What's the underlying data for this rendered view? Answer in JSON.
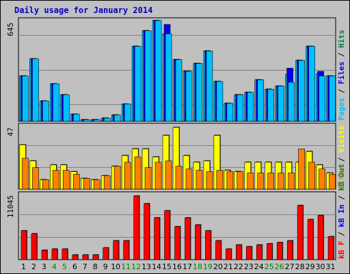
{
  "chart_data": [
    {
      "type": "bar",
      "title": "Daily usage for January 2014",
      "panel": "top",
      "ymax_label": "645",
      "ymax": 645,
      "categories": [
        "1",
        "2",
        "3",
        "4",
        "5",
        "6",
        "7",
        "8",
        "9",
        "10",
        "11",
        "12",
        "13",
        "14",
        "15",
        "16",
        "17",
        "18",
        "19",
        "20",
        "21",
        "22",
        "23",
        "24",
        "25",
        "26",
        "27",
        "28",
        "29",
        "30",
        "31"
      ],
      "weekend_days": [
        "4",
        "5",
        "11",
        "12",
        "18",
        "19",
        "25",
        "26"
      ],
      "side_label_parts": [
        "Pages",
        "Files",
        "Hits"
      ],
      "series": [
        {
          "name": "Hits",
          "values": [
            290,
            400,
            130,
            240,
            170,
            45,
            10,
            10,
            20,
            40,
            110,
            480,
            580,
            645,
            560,
            395,
            320,
            370,
            450,
            255,
            115,
            170,
            185,
            265,
            205,
            225,
            300,
            390,
            480,
            305,
            290
          ]
        },
        {
          "name": "Files",
          "values": [
            290,
            400,
            130,
            240,
            170,
            45,
            10,
            10,
            20,
            40,
            110,
            480,
            580,
            645,
            620,
            395,
            320,
            370,
            450,
            255,
            115,
            170,
            185,
            265,
            205,
            225,
            340,
            390,
            480,
            320,
            290
          ]
        },
        {
          "name": "Pages",
          "values": [
            290,
            400,
            130,
            240,
            170,
            45,
            10,
            10,
            20,
            40,
            110,
            480,
            580,
            645,
            560,
            395,
            320,
            370,
            450,
            255,
            115,
            170,
            185,
            265,
            205,
            225,
            250,
            390,
            480,
            290,
            290
          ]
        }
      ]
    },
    {
      "type": "bar",
      "panel": "middle",
      "ymax_label": "47",
      "ymax": 47,
      "categories": [
        "1",
        "2",
        "3",
        "4",
        "5",
        "6",
        "7",
        "8",
        "9",
        "10",
        "11",
        "12",
        "13",
        "14",
        "15",
        "16",
        "17",
        "18",
        "19",
        "20",
        "21",
        "22",
        "23",
        "24",
        "25",
        "26",
        "27",
        "28",
        "29",
        "30",
        "31"
      ],
      "side_label_parts": [
        "Sites",
        "Visits"
      ],
      "series": [
        {
          "name": "Visits",
          "values": [
            33,
            21,
            7,
            18,
            18,
            13,
            8,
            7,
            10,
            17,
            25,
            30,
            30,
            24,
            40,
            46,
            25,
            20,
            21,
            40,
            14,
            13,
            20,
            20,
            20,
            20,
            20,
            20,
            28,
            18,
            12
          ]
        },
        {
          "name": "Sites",
          "values": [
            23,
            16,
            7,
            14,
            14,
            11,
            8,
            7,
            10,
            17,
            20,
            24,
            16,
            20,
            21,
            17,
            15,
            14,
            13,
            14,
            13,
            13,
            12,
            12,
            12,
            12,
            12,
            30,
            20,
            15,
            11
          ]
        }
      ]
    },
    {
      "type": "bar",
      "panel": "bottom",
      "ymax_label": "11045",
      "ymax": 11045,
      "categories": [
        "1",
        "2",
        "3",
        "4",
        "5",
        "6",
        "7",
        "8",
        "9",
        "10",
        "11",
        "12",
        "13",
        "14",
        "15",
        "16",
        "17",
        "18",
        "19",
        "20",
        "21",
        "22",
        "23",
        "24",
        "25",
        "26",
        "27",
        "28",
        "29",
        "30",
        "31"
      ],
      "side_label_parts": [
        "kB F",
        "kB In",
        "kB Out"
      ],
      "series": [
        {
          "name": "kB F",
          "values": [
            4900,
            4400,
            1600,
            1800,
            1800,
            800,
            800,
            800,
            2000,
            3200,
            3200,
            10800,
            9500,
            7100,
            8300,
            5600,
            7100,
            5900,
            4900,
            3200,
            1800,
            2500,
            2200,
            2500,
            2700,
            2900,
            3200,
            9200,
            6800,
            7500,
            3900
          ]
        }
      ]
    }
  ],
  "colors": {
    "hits": "#00c0ff",
    "files": "#0000ff",
    "pages": "#00c0ff",
    "visits": "#ffff00",
    "sites": "#ff8000",
    "kbf": "#ff0000",
    "kbin": "#0000ff",
    "kbout": "#008040",
    "title": "#0000c0",
    "weekend": "#008000"
  }
}
